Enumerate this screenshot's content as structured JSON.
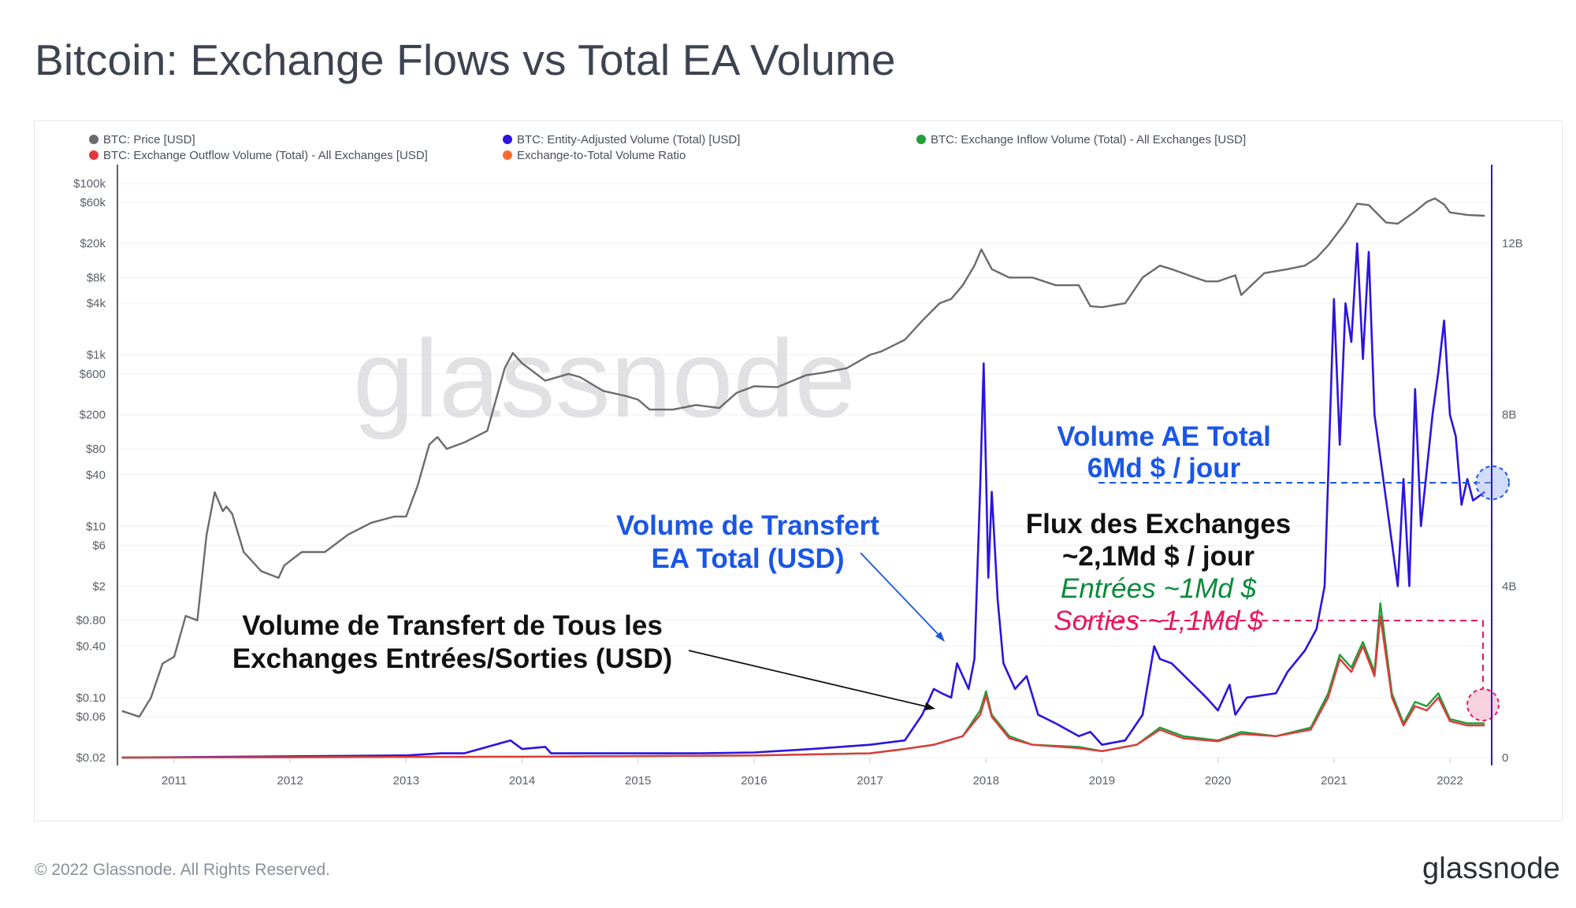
{
  "title": "Bitcoin: Exchange Flows vs Total EA Volume",
  "footer": {
    "copyright": "© 2022 Glassnode. All Rights Reserved.",
    "brand": "glassnode"
  },
  "watermark": "glassnode",
  "colors": {
    "price": "#6b6b6b",
    "ea_volume": "#2b14e0",
    "inflow": "#1f9e3a",
    "outflow": "#e03a3a",
    "ratio": "#ff6a2e",
    "annot_blue": "#1a56e6",
    "annot_pink": "#e8195e",
    "annot_green": "#0a8a3a"
  },
  "legend": [
    {
      "label": "BTC: Price [USD]",
      "color": "#6b6b6b"
    },
    {
      "label": "BTC: Entity-Adjusted Volume (Total) [USD]",
      "color": "#2b14e0"
    },
    {
      "label": "BTC: Exchange Inflow Volume (Total) - All Exchanges [USD]",
      "color": "#1f9e3a"
    },
    {
      "label": "BTC: Exchange Outflow Volume (Total) - All Exchanges [USD]",
      "color": "#e03a3a"
    },
    {
      "label": "Exchange-to-Total Volume Ratio",
      "color": "#ff6a2e",
      "disabled": true
    }
  ],
  "annotations": {
    "ea_line1": "Volume de Transfert",
    "ea_line2": "EA Total (USD)",
    "exch_line1": "Volume de Transfert de Tous les",
    "exch_line2": "Exchanges Entrées/Sorties (USD)",
    "total_line1": "Volume AE Total",
    "total_line2": "6Md $ / jour",
    "flux_line1": "Flux des Exchanges",
    "flux_line2": "~2,1Md $ / jour",
    "flux_in": "Entrées ~1Md $",
    "flux_out": "Sorties ~1,1Md $"
  },
  "chart_data": {
    "type": "line",
    "x_ticks": [
      "2011",
      "2012",
      "2013",
      "2014",
      "2015",
      "2016",
      "2017",
      "2018",
      "2019",
      "2020",
      "2021",
      "2022"
    ],
    "y_left": {
      "scale": "log",
      "ticks": [
        "$100k",
        "$60k",
        "$20k",
        "$8k",
        "$4k",
        "$1k",
        "$600",
        "$200",
        "$80",
        "$40",
        "$10",
        "$6",
        "$2",
        "$0.80",
        "$0.40",
        "$0.10",
        "$0.06",
        "$0.02"
      ],
      "tick_values": [
        100000,
        60000,
        20000,
        8000,
        4000,
        1000,
        600,
        200,
        80,
        40,
        10,
        6,
        2,
        0.8,
        0.4,
        0.1,
        0.06,
        0.02
      ]
    },
    "y_right": {
      "scale": "linear",
      "ticks": [
        "12B",
        "8B",
        "4B",
        "0"
      ],
      "tick_values": [
        12,
        8,
        4,
        0
      ],
      "range": [
        0,
        13.8
      ]
    },
    "series": [
      {
        "name": "BTC: Price [USD]",
        "axis": "left",
        "x": [
          2010.55,
          2010.7,
          2010.8,
          2010.9,
          2011.0,
          2011.1,
          2011.2,
          2011.28,
          2011.35,
          2011.42,
          2011.45,
          2011.5,
          2011.6,
          2011.75,
          2011.9,
          2011.95,
          2012.1,
          2012.3,
          2012.5,
          2012.7,
          2012.9,
          2013.0,
          2013.1,
          2013.2,
          2013.27,
          2013.35,
          2013.5,
          2013.7,
          2013.85,
          2013.92,
          2014.0,
          2014.2,
          2014.4,
          2014.5,
          2014.7,
          2014.9,
          2015.0,
          2015.1,
          2015.3,
          2015.5,
          2015.7,
          2015.85,
          2016.0,
          2016.2,
          2016.45,
          2016.6,
          2016.8,
          2017.0,
          2017.1,
          2017.3,
          2017.45,
          2017.6,
          2017.7,
          2017.8,
          2017.9,
          2017.96,
          2018.05,
          2018.2,
          2018.4,
          2018.6,
          2018.8,
          2018.9,
          2019.0,
          2019.2,
          2019.35,
          2019.5,
          2019.6,
          2019.8,
          2019.9,
          2020.0,
          2020.15,
          2020.2,
          2020.4,
          2020.6,
          2020.75,
          2020.85,
          2020.95,
          2021.1,
          2021.2,
          2021.3,
          2021.45,
          2021.55,
          2021.7,
          2021.8,
          2021.87,
          2021.95,
          2022.0,
          2022.15,
          2022.3
        ],
        "values": [
          0.07,
          0.06,
          0.1,
          0.25,
          0.3,
          0.9,
          0.8,
          8,
          25,
          15,
          17,
          14,
          5,
          3,
          2.5,
          3.5,
          5,
          5,
          8,
          11,
          13,
          13,
          30,
          90,
          110,
          80,
          95,
          130,
          700,
          1050,
          800,
          500,
          600,
          550,
          380,
          330,
          300,
          230,
          230,
          260,
          240,
          360,
          430,
          420,
          580,
          620,
          700,
          1000,
          1100,
          1500,
          2500,
          4000,
          4500,
          6500,
          11000,
          17000,
          10000,
          8000,
          8000,
          6500,
          6500,
          3700,
          3600,
          4000,
          8000,
          11000,
          10000,
          8000,
          7200,
          7200,
          8500,
          5000,
          9000,
          10000,
          11000,
          13500,
          19000,
          35000,
          58000,
          56000,
          35000,
          34000,
          47000,
          61000,
          67000,
          57000,
          46000,
          43000,
          42000
        ]
      },
      {
        "name": "BTC: Entity-Adjusted Volume (Total) [USD]",
        "axis": "right",
        "x": [
          2010.55,
          2013.0,
          2013.3,
          2013.5,
          2013.9,
          2013.95,
          2014.0,
          2014.2,
          2014.25,
          2014.3,
          2015.0,
          2015.5,
          2016.0,
          2016.5,
          2017.0,
          2017.3,
          2017.45,
          2017.55,
          2017.62,
          2017.7,
          2017.75,
          2017.85,
          2017.9,
          2017.95,
          2017.98,
          2018.02,
          2018.05,
          2018.1,
          2018.15,
          2018.25,
          2018.35,
          2018.45,
          2018.6,
          2018.8,
          2018.9,
          2019.0,
          2019.2,
          2019.35,
          2019.45,
          2019.5,
          2019.6,
          2019.75,
          2019.9,
          2020.0,
          2020.1,
          2020.15,
          2020.25,
          2020.5,
          2020.6,
          2020.75,
          2020.85,
          2020.92,
          2021.0,
          2021.05,
          2021.1,
          2021.15,
          2021.2,
          2021.25,
          2021.3,
          2021.35,
          2021.45,
          2021.55,
          2021.6,
          2021.65,
          2021.7,
          2021.75,
          2021.85,
          2021.9,
          2021.95,
          2022.0,
          2022.05,
          2022.1,
          2022.15,
          2022.2,
          2022.3
        ],
        "values": [
          0,
          0.05,
          0.1,
          0.1,
          0.4,
          0.3,
          0.2,
          0.25,
          0.1,
          0.1,
          0.1,
          0.1,
          0.12,
          0.2,
          0.3,
          0.4,
          1.0,
          1.6,
          1.5,
          1.4,
          2.2,
          1.6,
          2.3,
          6.3,
          9.2,
          4.2,
          6.2,
          3.7,
          2.2,
          1.6,
          1.9,
          1.0,
          0.8,
          0.5,
          0.6,
          0.3,
          0.4,
          1.0,
          2.6,
          2.3,
          2.2,
          1.8,
          1.4,
          1.1,
          1.7,
          1.0,
          1.4,
          1.5,
          2.0,
          2.5,
          3.0,
          4.0,
          10.7,
          7.3,
          10.6,
          9.7,
          12.0,
          9.3,
          11.8,
          8.0,
          6.0,
          4.0,
          6.5,
          4.0,
          8.6,
          5.4,
          8.0,
          9.0,
          10.2,
          8.0,
          7.5,
          5.9,
          6.5,
          6.0,
          6.2
        ]
      },
      {
        "name": "BTC: Exchange Inflow Volume (Total) - All Exchanges [USD]",
        "axis": "right",
        "x": [
          2010.55,
          2014.0,
          2016.0,
          2017.0,
          2017.3,
          2017.55,
          2017.8,
          2017.95,
          2018.0,
          2018.05,
          2018.2,
          2018.4,
          2018.8,
          2019.0,
          2019.3,
          2019.5,
          2019.7,
          2020.0,
          2020.2,
          2020.5,
          2020.8,
          2020.95,
          2021.05,
          2021.15,
          2021.25,
          2021.35,
          2021.4,
          2021.5,
          2021.6,
          2021.7,
          2021.8,
          2021.9,
          2022.0,
          2022.15,
          2022.3
        ],
        "values": [
          0,
          0.02,
          0.05,
          0.1,
          0.2,
          0.3,
          0.5,
          1.1,
          1.55,
          1.0,
          0.5,
          0.3,
          0.25,
          0.15,
          0.3,
          0.7,
          0.5,
          0.4,
          0.6,
          0.5,
          0.7,
          1.5,
          2.4,
          2.1,
          2.7,
          2.0,
          3.6,
          1.5,
          0.8,
          1.3,
          1.2,
          1.5,
          0.9,
          0.8,
          0.8
        ]
      },
      {
        "name": "BTC: Exchange Outflow Volume (Total) - All Exchanges [USD]",
        "axis": "right",
        "x": [
          2010.55,
          2014.0,
          2016.0,
          2017.0,
          2017.3,
          2017.55,
          2017.8,
          2017.95,
          2018.0,
          2018.05,
          2018.2,
          2018.4,
          2018.8,
          2019.0,
          2019.3,
          2019.5,
          2019.7,
          2020.0,
          2020.2,
          2020.5,
          2020.8,
          2020.95,
          2021.05,
          2021.15,
          2021.25,
          2021.35,
          2021.4,
          2021.5,
          2021.6,
          2021.7,
          2021.8,
          2021.9,
          2022.0,
          2022.15,
          2022.3
        ],
        "values": [
          0,
          0.02,
          0.05,
          0.1,
          0.2,
          0.3,
          0.5,
          1.0,
          1.45,
          0.95,
          0.45,
          0.3,
          0.22,
          0.15,
          0.3,
          0.65,
          0.45,
          0.38,
          0.55,
          0.5,
          0.65,
          1.4,
          2.3,
          2.0,
          2.6,
          1.9,
          3.3,
          1.4,
          0.75,
          1.2,
          1.1,
          1.4,
          0.85,
          0.75,
          0.75
        ]
      }
    ]
  }
}
